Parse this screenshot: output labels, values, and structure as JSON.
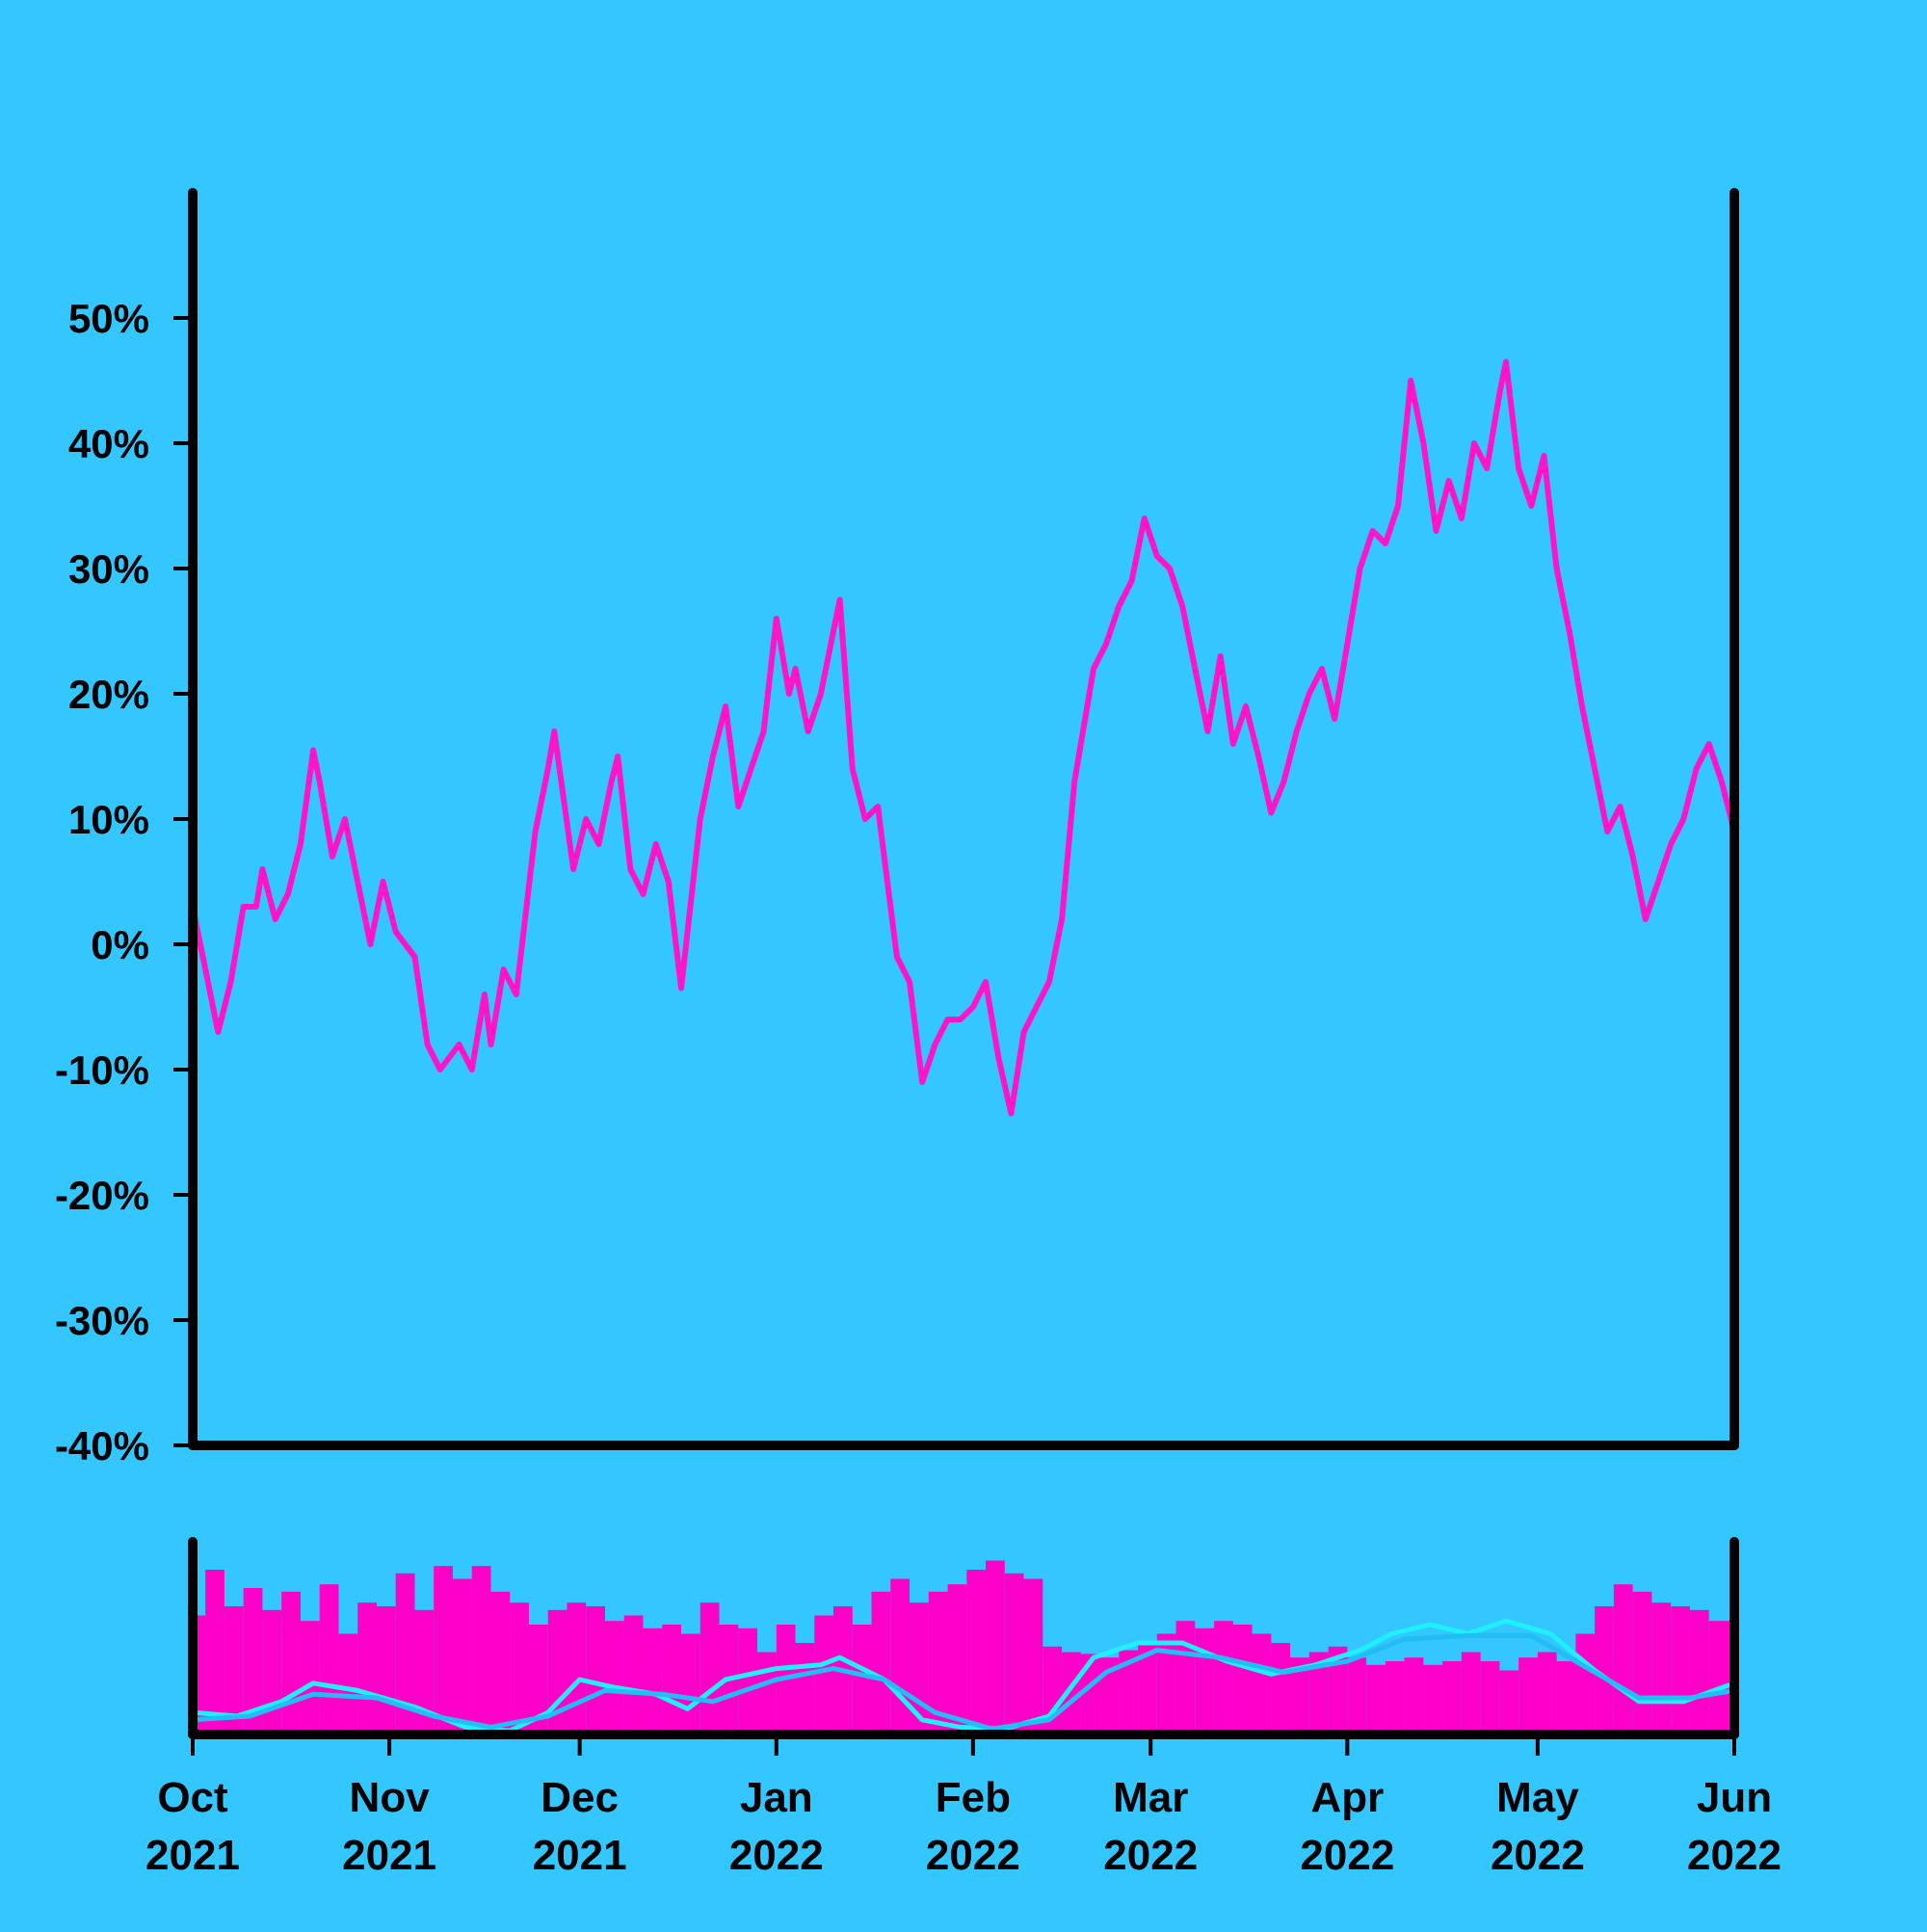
{
  "chart_data": {
    "type": "line",
    "title": "",
    "xlabel": "",
    "ylabel": "",
    "colors": {
      "background": "#33c6ff",
      "line": "#ff14c8",
      "volume": "#ff00c8",
      "ma_fast": "#1ef0ff",
      "ma_slow": "#22bdf2",
      "axis": "#000000"
    },
    "y_axis": {
      "ylim": [
        -40,
        60
      ],
      "ticks": [
        50,
        40,
        30,
        20,
        10,
        0,
        -10,
        -20,
        -30,
        -40
      ],
      "tick_labels": [
        "50%",
        "40%",
        "30%",
        "20%",
        "10%",
        "0%",
        "-10%",
        "-20%",
        "-30%",
        "-40%"
      ]
    },
    "x_axis": {
      "xlim": [
        "2021-10-01",
        "2022-06-01"
      ],
      "ticks": [
        {
          "month": "Oct",
          "year": "2021",
          "date": "2021-10-01"
        },
        {
          "month": "Nov",
          "year": "2021",
          "date": "2021-11-01"
        },
        {
          "month": "Dec",
          "year": "2021",
          "date": "2021-12-01"
        },
        {
          "month": "Jan",
          "year": "2022",
          "date": "2022-01-01"
        },
        {
          "month": "Feb",
          "year": "2022",
          "date": "2022-02-01"
        },
        {
          "month": "Mar",
          "year": "2022",
          "date": "2022-03-01"
        },
        {
          "month": "Apr",
          "year": "2022",
          "date": "2022-04-01"
        },
        {
          "month": "May",
          "year": "2022",
          "date": "2022-05-01"
        },
        {
          "month": "Jun",
          "year": "2022",
          "date": "2022-06-01"
        }
      ]
    },
    "series": [
      {
        "type": "line",
        "points": [
          [
            "2021-10-01",
            3
          ],
          [
            "2021-10-03",
            -2
          ],
          [
            "2021-10-05",
            -7
          ],
          [
            "2021-10-07",
            -3
          ],
          [
            "2021-10-09",
            3
          ],
          [
            "2021-10-11",
            3
          ],
          [
            "2021-10-12",
            6
          ],
          [
            "2021-10-14",
            2
          ],
          [
            "2021-10-16",
            4
          ],
          [
            "2021-10-18",
            8
          ],
          [
            "2021-10-20",
            15.5
          ],
          [
            "2021-10-21",
            13
          ],
          [
            "2021-10-23",
            7
          ],
          [
            "2021-10-25",
            10
          ],
          [
            "2021-10-27",
            5
          ],
          [
            "2021-10-29",
            0
          ],
          [
            "2021-10-31",
            5
          ],
          [
            "2021-11-02",
            1
          ],
          [
            "2021-11-05",
            -1
          ],
          [
            "2021-11-07",
            -8
          ],
          [
            "2021-11-09",
            -10
          ],
          [
            "2021-11-12",
            -8
          ],
          [
            "2021-11-14",
            -10
          ],
          [
            "2021-11-16",
            -4
          ],
          [
            "2021-11-17",
            -8
          ],
          [
            "2021-11-19",
            -2
          ],
          [
            "2021-11-21",
            -4
          ],
          [
            "2021-11-24",
            9
          ],
          [
            "2021-11-26",
            14
          ],
          [
            "2021-11-27",
            17
          ],
          [
            "2021-11-30",
            6
          ],
          [
            "2021-12-02",
            10
          ],
          [
            "2021-12-04",
            8
          ],
          [
            "2021-12-06",
            13
          ],
          [
            "2021-12-07",
            15
          ],
          [
            "2021-12-09",
            6
          ],
          [
            "2021-12-11",
            4
          ],
          [
            "2021-12-13",
            8
          ],
          [
            "2021-12-15",
            5
          ],
          [
            "2021-12-17",
            -3.5
          ],
          [
            "2021-12-20",
            10
          ],
          [
            "2021-12-22",
            15
          ],
          [
            "2021-12-24",
            19
          ],
          [
            "2021-12-26",
            11
          ],
          [
            "2021-12-28",
            14
          ],
          [
            "2021-12-30",
            17
          ],
          [
            "2022-01-01",
            26
          ],
          [
            "2022-01-03",
            20
          ],
          [
            "2022-01-04",
            22
          ],
          [
            "2022-01-06",
            17
          ],
          [
            "2022-01-08",
            20
          ],
          [
            "2022-01-10",
            25
          ],
          [
            "2022-01-11",
            27.5
          ],
          [
            "2022-01-13",
            14
          ],
          [
            "2022-01-15",
            10
          ],
          [
            "2022-01-17",
            11
          ],
          [
            "2022-01-20",
            -1
          ],
          [
            "2022-01-22",
            -3
          ],
          [
            "2022-01-24",
            -11
          ],
          [
            "2022-01-26",
            -8
          ],
          [
            "2022-01-28",
            -6
          ],
          [
            "2022-01-30",
            -6
          ],
          [
            "2022-02-01",
            -5
          ],
          [
            "2022-02-03",
            -3
          ],
          [
            "2022-02-05",
            -9
          ],
          [
            "2022-02-07",
            -13.5
          ],
          [
            "2022-02-09",
            -7
          ],
          [
            "2022-02-11",
            -5
          ],
          [
            "2022-02-13",
            -3
          ],
          [
            "2022-02-15",
            2
          ],
          [
            "2022-02-17",
            13
          ],
          [
            "2022-02-20",
            22
          ],
          [
            "2022-02-22",
            24
          ],
          [
            "2022-02-24",
            27
          ],
          [
            "2022-02-26",
            29
          ],
          [
            "2022-02-28",
            34
          ],
          [
            "2022-03-02",
            31
          ],
          [
            "2022-03-04",
            30
          ],
          [
            "2022-03-06",
            27
          ],
          [
            "2022-03-08",
            22
          ],
          [
            "2022-03-10",
            17
          ],
          [
            "2022-03-12",
            23
          ],
          [
            "2022-03-14",
            16
          ],
          [
            "2022-03-16",
            19
          ],
          [
            "2022-03-18",
            15
          ],
          [
            "2022-03-20",
            10.5
          ],
          [
            "2022-03-22",
            13
          ],
          [
            "2022-03-24",
            17
          ],
          [
            "2022-03-26",
            20
          ],
          [
            "2022-03-28",
            22
          ],
          [
            "2022-03-30",
            18
          ],
          [
            "2022-04-01",
            24
          ],
          [
            "2022-04-03",
            30
          ],
          [
            "2022-04-05",
            33
          ],
          [
            "2022-04-07",
            32
          ],
          [
            "2022-04-09",
            35
          ],
          [
            "2022-04-11",
            45
          ],
          [
            "2022-04-13",
            40
          ],
          [
            "2022-04-15",
            33
          ],
          [
            "2022-04-17",
            37
          ],
          [
            "2022-04-19",
            34
          ],
          [
            "2022-04-21",
            40
          ],
          [
            "2022-04-23",
            38
          ],
          [
            "2022-04-25",
            44
          ],
          [
            "2022-04-26",
            46.5
          ],
          [
            "2022-04-28",
            38
          ],
          [
            "2022-04-30",
            35
          ],
          [
            "2022-05-02",
            39
          ],
          [
            "2022-05-04",
            30
          ],
          [
            "2022-05-06",
            25
          ],
          [
            "2022-05-08",
            19
          ],
          [
            "2022-05-10",
            14
          ],
          [
            "2022-05-12",
            9
          ],
          [
            "2022-05-14",
            11
          ],
          [
            "2022-05-16",
            7
          ],
          [
            "2022-05-18",
            2
          ],
          [
            "2022-05-20",
            5
          ],
          [
            "2022-05-22",
            8
          ],
          [
            "2022-05-24",
            10
          ],
          [
            "2022-05-26",
            14
          ],
          [
            "2022-05-28",
            16
          ],
          [
            "2022-05-30",
            13
          ],
          [
            "2022-06-01",
            9
          ]
        ]
      }
    ],
    "volume": {
      "ylim": [
        0,
        1
      ],
      "points": [
        [
          "2021-10-01",
          0.65
        ],
        [
          "2021-10-03",
          0.9
        ],
        [
          "2021-10-06",
          0.7
        ],
        [
          "2021-10-09",
          0.8
        ],
        [
          "2021-10-12",
          0.68
        ],
        [
          "2021-10-15",
          0.78
        ],
        [
          "2021-10-18",
          0.62
        ],
        [
          "2021-10-21",
          0.82
        ],
        [
          "2021-10-24",
          0.55
        ],
        [
          "2021-10-27",
          0.72
        ],
        [
          "2021-10-30",
          0.7
        ],
        [
          "2021-11-02",
          0.88
        ],
        [
          "2021-11-05",
          0.68
        ],
        [
          "2021-11-08",
          0.92
        ],
        [
          "2021-11-11",
          0.85
        ],
        [
          "2021-11-14",
          0.92
        ],
        [
          "2021-11-17",
          0.78
        ],
        [
          "2021-11-20",
          0.72
        ],
        [
          "2021-11-23",
          0.6
        ],
        [
          "2021-11-26",
          0.68
        ],
        [
          "2021-11-29",
          0.72
        ],
        [
          "2021-12-02",
          0.7
        ],
        [
          "2021-12-05",
          0.62
        ],
        [
          "2021-12-08",
          0.65
        ],
        [
          "2021-12-11",
          0.58
        ],
        [
          "2021-12-14",
          0.6
        ],
        [
          "2021-12-17",
          0.55
        ],
        [
          "2021-12-20",
          0.72
        ],
        [
          "2021-12-23",
          0.6
        ],
        [
          "2021-12-26",
          0.58
        ],
        [
          "2021-12-29",
          0.45
        ],
        [
          "2022-01-01",
          0.6
        ],
        [
          "2022-01-04",
          0.5
        ],
        [
          "2022-01-07",
          0.65
        ],
        [
          "2022-01-10",
          0.7
        ],
        [
          "2022-01-13",
          0.6
        ],
        [
          "2022-01-16",
          0.78
        ],
        [
          "2022-01-19",
          0.85
        ],
        [
          "2022-01-22",
          0.72
        ],
        [
          "2022-01-25",
          0.78
        ],
        [
          "2022-01-28",
          0.82
        ],
        [
          "2022-01-31",
          0.9
        ],
        [
          "2022-02-03",
          0.95
        ],
        [
          "2022-02-06",
          0.88
        ],
        [
          "2022-02-09",
          0.85
        ],
        [
          "2022-02-12",
          0.48
        ],
        [
          "2022-02-15",
          0.45
        ],
        [
          "2022-02-18",
          0.44
        ],
        [
          "2022-02-21",
          0.42
        ],
        [
          "2022-02-24",
          0.46
        ],
        [
          "2022-02-27",
          0.5
        ],
        [
          "2022-03-02",
          0.55
        ],
        [
          "2022-03-05",
          0.62
        ],
        [
          "2022-03-08",
          0.58
        ],
        [
          "2022-03-11",
          0.62
        ],
        [
          "2022-03-14",
          0.6
        ],
        [
          "2022-03-17",
          0.55
        ],
        [
          "2022-03-20",
          0.5
        ],
        [
          "2022-03-23",
          0.42
        ],
        [
          "2022-03-26",
          0.45
        ],
        [
          "2022-03-29",
          0.48
        ],
        [
          "2022-04-01",
          0.42
        ],
        [
          "2022-04-04",
          0.38
        ],
        [
          "2022-04-07",
          0.4
        ],
        [
          "2022-04-10",
          0.42
        ],
        [
          "2022-04-13",
          0.38
        ],
        [
          "2022-04-16",
          0.4
        ],
        [
          "2022-04-19",
          0.45
        ],
        [
          "2022-04-22",
          0.4
        ],
        [
          "2022-04-25",
          0.35
        ],
        [
          "2022-04-28",
          0.42
        ],
        [
          "2022-05-01",
          0.45
        ],
        [
          "2022-05-04",
          0.4
        ],
        [
          "2022-05-07",
          0.55
        ],
        [
          "2022-05-10",
          0.7
        ],
        [
          "2022-05-13",
          0.82
        ],
        [
          "2022-05-16",
          0.78
        ],
        [
          "2022-05-19",
          0.72
        ],
        [
          "2022-05-22",
          0.7
        ],
        [
          "2022-05-25",
          0.68
        ],
        [
          "2022-05-28",
          0.62
        ],
        [
          "2022-06-01",
          0.55
        ]
      ]
    },
    "moving_averages": [
      {
        "color_key": "ma_fast",
        "points": [
          [
            "2021-10-01",
            0.12
          ],
          [
            "2021-10-08",
            0.1
          ],
          [
            "2021-10-15",
            0.18
          ],
          [
            "2021-10-20",
            0.28
          ],
          [
            "2021-10-27",
            0.24
          ],
          [
            "2021-11-05",
            0.15
          ],
          [
            "2021-11-13",
            0.04
          ],
          [
            "2021-11-20",
            0.02
          ],
          [
            "2021-11-26",
            0.12
          ],
          [
            "2021-12-01",
            0.3
          ],
          [
            "2021-12-06",
            0.26
          ],
          [
            "2021-12-13",
            0.22
          ],
          [
            "2021-12-18",
            0.14
          ],
          [
            "2021-12-24",
            0.3
          ],
          [
            "2022-01-01",
            0.36
          ],
          [
            "2022-01-08",
            0.38
          ],
          [
            "2022-01-11",
            0.42
          ],
          [
            "2022-01-18",
            0.3
          ],
          [
            "2022-01-24",
            0.08
          ],
          [
            "2022-01-30",
            0.04
          ],
          [
            "2022-02-06",
            0.03
          ],
          [
            "2022-02-13",
            0.1
          ],
          [
            "2022-02-20",
            0.42
          ],
          [
            "2022-02-27",
            0.5
          ],
          [
            "2022-03-06",
            0.5
          ],
          [
            "2022-03-13",
            0.4
          ],
          [
            "2022-03-20",
            0.33
          ],
          [
            "2022-03-27",
            0.38
          ],
          [
            "2022-04-03",
            0.46
          ],
          [
            "2022-04-08",
            0.55
          ],
          [
            "2022-04-14",
            0.6
          ],
          [
            "2022-04-20",
            0.55
          ],
          [
            "2022-04-26",
            0.62
          ],
          [
            "2022-05-03",
            0.55
          ],
          [
            "2022-05-10",
            0.35
          ],
          [
            "2022-05-17",
            0.18
          ],
          [
            "2022-05-24",
            0.18
          ],
          [
            "2022-06-01",
            0.28
          ]
        ]
      },
      {
        "color_key": "ma_slow",
        "points": [
          [
            "2021-10-01",
            0.08
          ],
          [
            "2021-10-10",
            0.1
          ],
          [
            "2021-10-20",
            0.22
          ],
          [
            "2021-10-30",
            0.2
          ],
          [
            "2021-11-08",
            0.1
          ],
          [
            "2021-11-17",
            0.04
          ],
          [
            "2021-11-26",
            0.1
          ],
          [
            "2021-12-05",
            0.24
          ],
          [
            "2021-12-14",
            0.22
          ],
          [
            "2021-12-22",
            0.18
          ],
          [
            "2022-01-01",
            0.3
          ],
          [
            "2022-01-10",
            0.36
          ],
          [
            "2022-01-18",
            0.3
          ],
          [
            "2022-01-26",
            0.12
          ],
          [
            "2022-02-04",
            0.03
          ],
          [
            "2022-02-13",
            0.08
          ],
          [
            "2022-02-22",
            0.34
          ],
          [
            "2022-03-02",
            0.46
          ],
          [
            "2022-03-12",
            0.42
          ],
          [
            "2022-03-22",
            0.34
          ],
          [
            "2022-04-01",
            0.4
          ],
          [
            "2022-04-10",
            0.52
          ],
          [
            "2022-04-20",
            0.54
          ],
          [
            "2022-04-30",
            0.54
          ],
          [
            "2022-05-08",
            0.38
          ],
          [
            "2022-05-17",
            0.2
          ],
          [
            "2022-05-25",
            0.2
          ],
          [
            "2022-06-01",
            0.24
          ]
        ]
      }
    ]
  }
}
